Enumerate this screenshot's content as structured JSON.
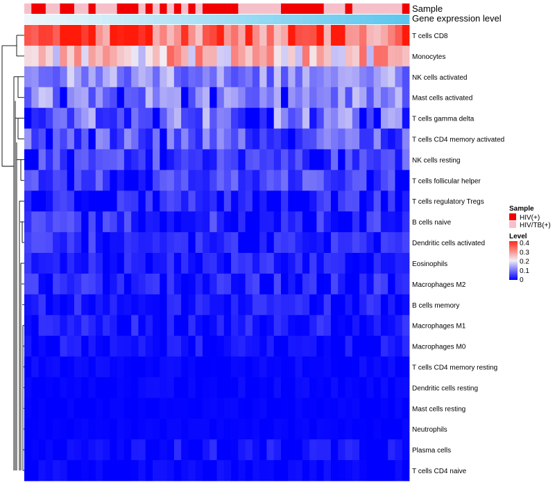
{
  "chart_data": {
    "type": "heatmap",
    "title": "",
    "annotation_tracks": [
      {
        "name": "Sample",
        "kind": "categorical"
      },
      {
        "name": "Gene expression level",
        "kind": "continuous"
      }
    ],
    "sample_groups": [
      "HIV(+)",
      "HIV/TB(+)"
    ],
    "sample_group_colors": {
      "HIV(+)": "#f20000",
      "HIV/TB(+)": "#f6c0cb"
    },
    "sample_annotation": [
      "HIV/TB(+)",
      "HIV(+)",
      "HIV(+)",
      "HIV/TB(+)",
      "HIV/TB(+)",
      "HIV(+)",
      "HIV(+)",
      "HIV/TB(+)",
      "HIV/TB(+)",
      "HIV(+)",
      "HIV/TB(+)",
      "HIV/TB(+)",
      "HIV/TB(+)",
      "HIV(+)",
      "HIV(+)",
      "HIV(+)",
      "HIV/TB(+)",
      "HIV(+)",
      "HIV/TB(+)",
      "HIV(+)",
      "HIV/TB(+)",
      "HIV(+)",
      "HIV/TB(+)",
      "HIV(+)",
      "HIV/TB(+)",
      "HIV(+)",
      "HIV(+)",
      "HIV(+)",
      "HIV(+)",
      "HIV(+)",
      "HIV/TB(+)",
      "HIV/TB(+)",
      "HIV/TB(+)",
      "HIV/TB(+)",
      "HIV/TB(+)",
      "HIV/TB(+)",
      "HIV(+)",
      "HIV(+)",
      "HIV(+)",
      "HIV(+)",
      "HIV(+)",
      "HIV(+)",
      "HIV/TB(+)",
      "HIV/TB(+)",
      "HIV/TB(+)",
      "HIV(+)",
      "HIV/TB(+)",
      "HIV/TB(+)",
      "HIV/TB(+)",
      "HIV/TB(+)",
      "HIV/TB(+)",
      "HIV/TB(+)",
      "HIV/TB(+)",
      "HIV(+)"
    ],
    "expression_gradient": {
      "low": "#eef7fb",
      "high": "#5bc6ee"
    },
    "rows": [
      "T cells CD8",
      "Monocytes",
      "NK cells activated",
      "Mast cells activated",
      "T cells gamma delta",
      "T cells CD4 memory activated",
      "NK cells resting",
      "T cells follicular helper",
      "T cells regulatory  Tregs",
      "B cells naive",
      "Dendritic cells activated",
      "Eosinophils",
      "Macrophages M2",
      "B cells memory",
      "Macrophages M1",
      "Macrophages M0",
      "T cells CD4 memory resting",
      "Dendritic cells resting",
      "Mast cells resting",
      "Neutrophils",
      "Plasma cells",
      "T cells CD4 naive"
    ],
    "value_range": [
      0,
      0.4
    ],
    "legend": {
      "sample_title": "Sample",
      "level_title": "Level",
      "level_ticks": [
        "0.4",
        "0.3",
        "0.2",
        "0.1",
        "0"
      ],
      "placement": "right"
    }
  }
}
